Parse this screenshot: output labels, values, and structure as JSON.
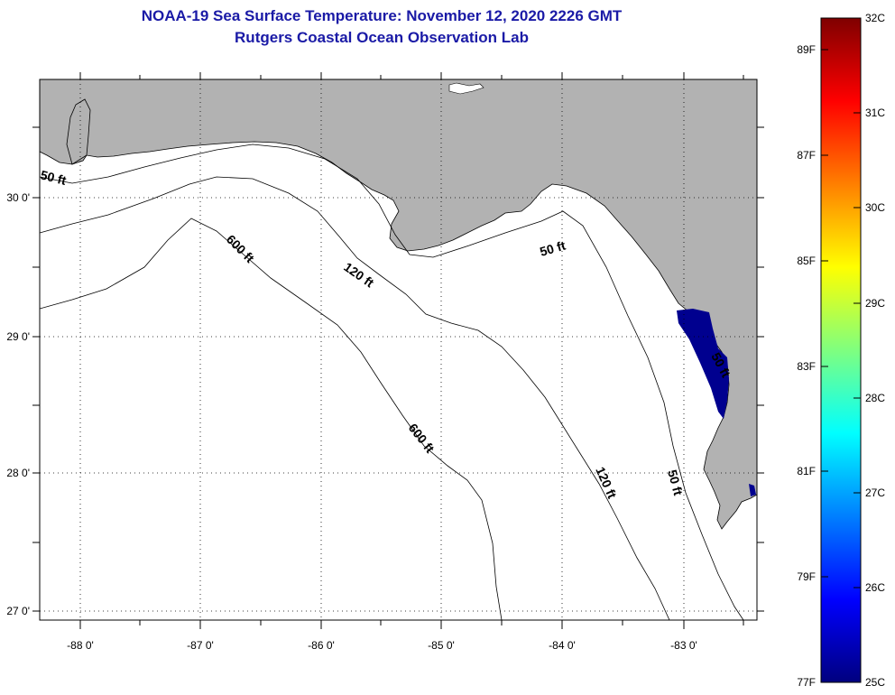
{
  "title": {
    "line1": "NOAA-19 Sea Surface Temperature:  November 12, 2020 2226 GMT",
    "line2": "Rutgers Coastal Ocean Observation Lab"
  },
  "map": {
    "longitude_labels": [
      "-88 0'",
      "-87 0'",
      "-86 0'",
      "-85 0'",
      "-84 0'",
      "-83 0'"
    ],
    "latitude_labels": [
      "30 0'",
      "29 0'",
      "28 0'",
      "27 0'"
    ],
    "contour_labels": {
      "depth_50_west": "50 ft",
      "depth_50_east": "50 ft",
      "depth_50_south": "50 ft",
      "depth_120_north": "120 ft",
      "depth_120_south": "120 ft",
      "depth_600_north": "600 ft",
      "depth_600_south": "600 ft",
      "depth_50_partial": "50 ft"
    },
    "colors": {
      "land": "#b2b2b2",
      "ocean": "#ffffff",
      "sst_patch": "#00008f"
    }
  },
  "colorbar": {
    "fahrenheit_labels": [
      "89F",
      "87F",
      "85F",
      "83F",
      "81F",
      "79F",
      "77F"
    ],
    "celsius_labels": [
      "32C",
      "31C",
      "30C",
      "29C",
      "28C",
      "27C",
      "26C",
      "25C"
    ],
    "color_stops": [
      "#00007f",
      "#0000ff",
      "#007fff",
      "#00ffff",
      "#7fff7f",
      "#ffff00",
      "#ff7f00",
      "#ff0000",
      "#7f0000"
    ]
  }
}
